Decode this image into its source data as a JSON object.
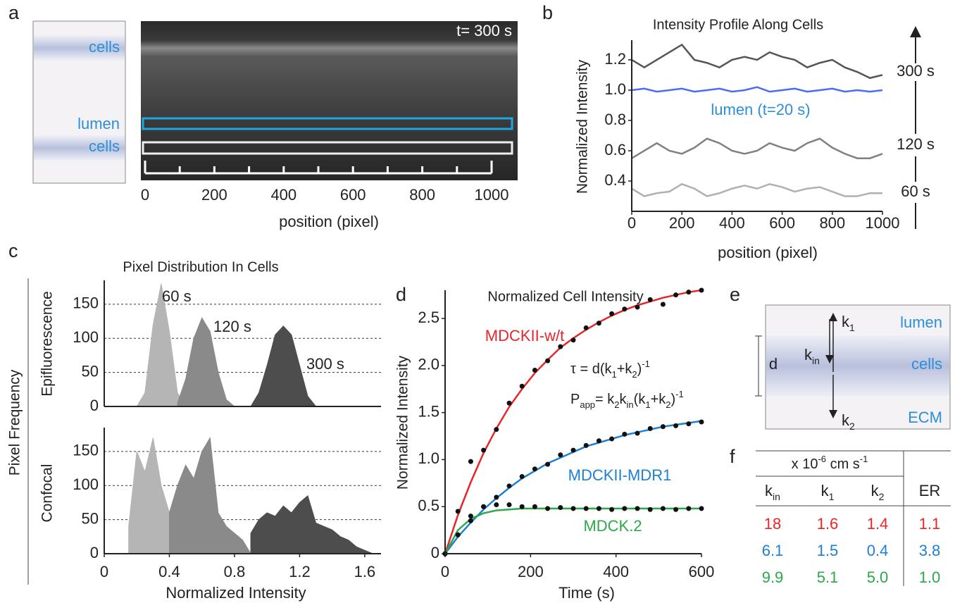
{
  "panel_labels": [
    "a",
    "b",
    "c",
    "d",
    "e",
    "f"
  ],
  "panel_a": {
    "schematic_labels": [
      "cells",
      "lumen",
      "cells"
    ],
    "time_label": "t= 300 s",
    "xlabel": "position (pixel)",
    "xlim": [
      0,
      1000
    ],
    "xticks": [
      0,
      200,
      400,
      600,
      800,
      1000
    ],
    "ruler_ticks": [
      0,
      100,
      200,
      300,
      400,
      500,
      600,
      700,
      800,
      900,
      1000
    ]
  },
  "chart_data": [
    {
      "type": "line",
      "title": "Intensity Profile Along Cells",
      "xlabel": "position (pixel)",
      "ylabel": "Normalized Intensity",
      "x": [
        0,
        50,
        100,
        150,
        200,
        250,
        300,
        350,
        400,
        450,
        500,
        550,
        600,
        650,
        700,
        750,
        800,
        850,
        900,
        950,
        1000
      ],
      "xlim": [
        0,
        1000
      ],
      "xticks": [
        0,
        200,
        400,
        600,
        800,
        1000
      ],
      "ylim": [
        0.2,
        1.33
      ],
      "yticks": [
        0.4,
        0.6,
        0.8,
        {
          "value": 1,
          "label": "1.0"
        },
        1.2
      ],
      "grid": false,
      "series": [
        {
          "name": "300 s",
          "color": "#555555",
          "values": [
            1.2,
            1.15,
            1.2,
            1.25,
            1.3,
            1.2,
            1.18,
            1.15,
            1.2,
            1.22,
            1.2,
            1.25,
            1.22,
            1.2,
            1.15,
            1.18,
            1.2,
            1.15,
            1.12,
            1.08,
            1.1
          ]
        },
        {
          "name": "lumen (t=20 s)",
          "color": "#4a6cf7",
          "values": [
            1.0,
            1.01,
            0.99,
            1.0,
            1.01,
            0.99,
            1.0,
            1.01,
            0.99,
            1.0,
            1.02,
            0.99,
            1.0,
            1.01,
            0.99,
            1.0,
            1.01,
            0.99,
            1.0,
            0.99,
            1.0
          ]
        },
        {
          "name": "120 s",
          "color": "#808080",
          "values": [
            0.55,
            0.6,
            0.65,
            0.6,
            0.58,
            0.62,
            0.68,
            0.65,
            0.6,
            0.58,
            0.6,
            0.65,
            0.62,
            0.6,
            0.65,
            0.68,
            0.62,
            0.58,
            0.55,
            0.55,
            0.58
          ]
        },
        {
          "name": "60 s",
          "color": "#b0b0b0",
          "values": [
            0.35,
            0.3,
            0.32,
            0.33,
            0.38,
            0.35,
            0.3,
            0.32,
            0.35,
            0.37,
            0.35,
            0.38,
            0.36,
            0.33,
            0.35,
            0.36,
            0.33,
            0.3,
            0.3,
            0.32,
            0.32
          ]
        }
      ]
    },
    {
      "type": "area",
      "title": "Pixel Distribution In Cells",
      "ylabel": "Pixel Frequency",
      "subplot_label": "Epifluorescence",
      "x": [
        0.15,
        0.2,
        0.25,
        0.3,
        0.35,
        0.4,
        0.45,
        0.5,
        0.55,
        0.6,
        0.65,
        0.7,
        0.75,
        0.8,
        0.85,
        0.9,
        0.95,
        1.0,
        1.05,
        1.1,
        1.15,
        1.2,
        1.25,
        1.3,
        1.35,
        1.4,
        1.45,
        1.5,
        1.55,
        1.6,
        1.65
      ],
      "xlim": [
        0,
        1.7
      ],
      "ylim": [
        0,
        185
      ],
      "yticks": [
        0,
        50,
        100,
        150
      ],
      "grid": true,
      "series": [
        {
          "name": "60 s",
          "color": "#b5b5b5",
          "values": [
            null,
            0,
            20,
            120,
            180,
            110,
            20,
            0,
            null,
            null,
            null,
            null,
            null,
            null,
            null,
            null,
            null,
            null,
            null,
            null,
            null,
            null,
            null,
            null,
            null,
            null,
            null,
            null,
            null,
            null,
            null
          ]
        },
        {
          "name": "120 s",
          "color": "#8a8a8a",
          "values": [
            null,
            null,
            null,
            null,
            null,
            null,
            5,
            40,
            100,
            130,
            110,
            50,
            10,
            0,
            null,
            null,
            null,
            null,
            null,
            null,
            null,
            null,
            null,
            null,
            null,
            null,
            null,
            null,
            null,
            null,
            null
          ]
        },
        {
          "name": "300 s",
          "color": "#4d4d4d",
          "values": [
            null,
            null,
            null,
            null,
            null,
            null,
            null,
            null,
            null,
            null,
            null,
            null,
            null,
            null,
            null,
            0,
            20,
            60,
            105,
            118,
            105,
            60,
            15,
            0,
            null,
            null,
            null,
            null,
            null,
            null,
            null
          ]
        }
      ]
    },
    {
      "type": "area",
      "subplot_label": "Confocal",
      "xlabel": "Normalized Intensity",
      "x": [
        0.15,
        0.2,
        0.25,
        0.3,
        0.35,
        0.4,
        0.45,
        0.5,
        0.55,
        0.6,
        0.65,
        0.7,
        0.75,
        0.8,
        0.85,
        0.9,
        0.95,
        1.0,
        1.05,
        1.1,
        1.15,
        1.2,
        1.25,
        1.3,
        1.35,
        1.4,
        1.45,
        1.5,
        1.55,
        1.6,
        1.65
      ],
      "xlim": [
        0,
        1.7
      ],
      "xticks": [
        0,
        0.4,
        0.8,
        1.2,
        1.6
      ],
      "ylim": [
        0,
        185
      ],
      "yticks": [
        0,
        50,
        100,
        150
      ],
      "grid": true,
      "series": [
        {
          "color": "#b5b5b5",
          "values": [
            40,
            150,
            120,
            170,
            100,
            60,
            30,
            0,
            null,
            null,
            null,
            null,
            null,
            null,
            null,
            null,
            null,
            null,
            null,
            null,
            null,
            null,
            null,
            null,
            null,
            null,
            null,
            null,
            null,
            null,
            null
          ]
        },
        {
          "color": "#8a8a8a",
          "values": [
            null,
            null,
            null,
            null,
            null,
            60,
            100,
            130,
            110,
            150,
            170,
            60,
            40,
            30,
            20,
            0,
            null,
            null,
            null,
            null,
            null,
            null,
            null,
            null,
            null,
            null,
            null,
            null,
            null,
            null,
            null
          ]
        },
        {
          "color": "#4d4d4d",
          "values": [
            null,
            null,
            null,
            null,
            null,
            null,
            null,
            null,
            null,
            null,
            null,
            null,
            null,
            null,
            null,
            30,
            50,
            60,
            55,
            70,
            60,
            75,
            85,
            45,
            40,
            35,
            25,
            20,
            10,
            5,
            0
          ]
        }
      ]
    },
    {
      "type": "scatter",
      "title": "Normalized Cell Intensity",
      "xlabel": "Time (s)",
      "ylabel": "Normalized Intensity",
      "x": [
        0,
        30,
        60,
        90,
        120,
        150,
        180,
        210,
        240,
        270,
        300,
        330,
        360,
        390,
        420,
        450,
        480,
        510,
        540,
        570,
        600
      ],
      "xlim": [
        0,
        600
      ],
      "xticks": [
        0,
        200,
        400,
        600
      ],
      "ylim": [
        0,
        2.8
      ],
      "yticks": [
        0,
        0.5,
        {
          "value": 1,
          "label": "1.0"
        },
        1.5,
        {
          "value": 2,
          "label": "2.0"
        },
        2.5
      ],
      "grid": false,
      "series": [
        {
          "name": "MDCKII-w/t",
          "color": "#e8262a",
          "values": [
            0,
            0.45,
            0.98,
            1.1,
            1.32,
            1.6,
            1.78,
            1.95,
            2.05,
            2.2,
            2.27,
            2.4,
            2.45,
            2.55,
            2.6,
            2.62,
            2.7,
            2.65,
            2.75,
            2.78,
            2.8
          ],
          "fit": [
            0,
            0.41,
            0.76,
            1.07,
            1.33,
            1.56,
            1.75,
            1.92,
            2.06,
            2.19,
            2.29,
            2.38,
            2.46,
            2.53,
            2.59,
            2.64,
            2.68,
            2.72,
            2.75,
            2.78,
            2.8
          ]
        },
        {
          "name": "MDCKII-MDR1",
          "color": "#1e7fd6",
          "values": [
            0,
            0.2,
            0.35,
            0.5,
            0.6,
            0.72,
            0.82,
            0.9,
            0.95,
            1.05,
            1.1,
            1.15,
            1.2,
            1.22,
            1.27,
            1.28,
            1.33,
            1.35,
            1.36,
            1.38,
            1.4
          ],
          "fit": [
            0,
            0.18,
            0.33,
            0.47,
            0.59,
            0.7,
            0.8,
            0.88,
            0.96,
            1.02,
            1.08,
            1.14,
            1.18,
            1.22,
            1.26,
            1.29,
            1.32,
            1.35,
            1.37,
            1.39,
            1.41
          ]
        },
        {
          "name": "MDCK.2",
          "color": "#2ca84a",
          "values": [
            0,
            0.2,
            0.4,
            0.5,
            0.52,
            0.52,
            0.5,
            0.5,
            0.48,
            0.49,
            0.48,
            0.48,
            0.48,
            0.47,
            0.48,
            0.48,
            0.47,
            0.48,
            0.47,
            0.48,
            0.48
          ],
          "fit": [
            0,
            0.25,
            0.37,
            0.43,
            0.46,
            0.47,
            0.48,
            0.48,
            0.48,
            0.48,
            0.48,
            0.48,
            0.48,
            0.48,
            0.48,
            0.48,
            0.48,
            0.48,
            0.48,
            0.48,
            0.48
          ]
        }
      ],
      "equations": [
        [
          "τ = d(k",
          "1",
          "+k",
          "2",
          ")",
          "-1"
        ],
        [
          "P",
          "app",
          "= k",
          "2",
          "k",
          "in",
          "(k",
          "1",
          "+k",
          "2",
          ")",
          "-1"
        ]
      ]
    }
  ],
  "panel_e": {
    "regions": [
      "lumen",
      "cells",
      "ECM"
    ],
    "thickness": "d",
    "k_in": [
      "k",
      "in"
    ],
    "k_1": [
      "k",
      "1"
    ],
    "k_2": [
      "k",
      "2"
    ]
  },
  "panel_f": {
    "unit": [
      "x 10",
      "-6",
      " cm s",
      "-1"
    ],
    "columns": [
      [
        "k",
        "in"
      ],
      [
        "k",
        "1"
      ],
      [
        "k",
        "2"
      ],
      "ER"
    ],
    "rows": [
      {
        "color": "#e8262a",
        "cells": [
          "18",
          "1.6",
          "1.4",
          "1.1"
        ]
      },
      {
        "color": "#1e7fd6",
        "cells": [
          "6.1",
          "1.5",
          "0.4",
          "3.8"
        ]
      },
      {
        "color": "#2ca84a",
        "cells": [
          "9.9",
          "5.1",
          "5.0",
          "1.0"
        ]
      }
    ]
  }
}
